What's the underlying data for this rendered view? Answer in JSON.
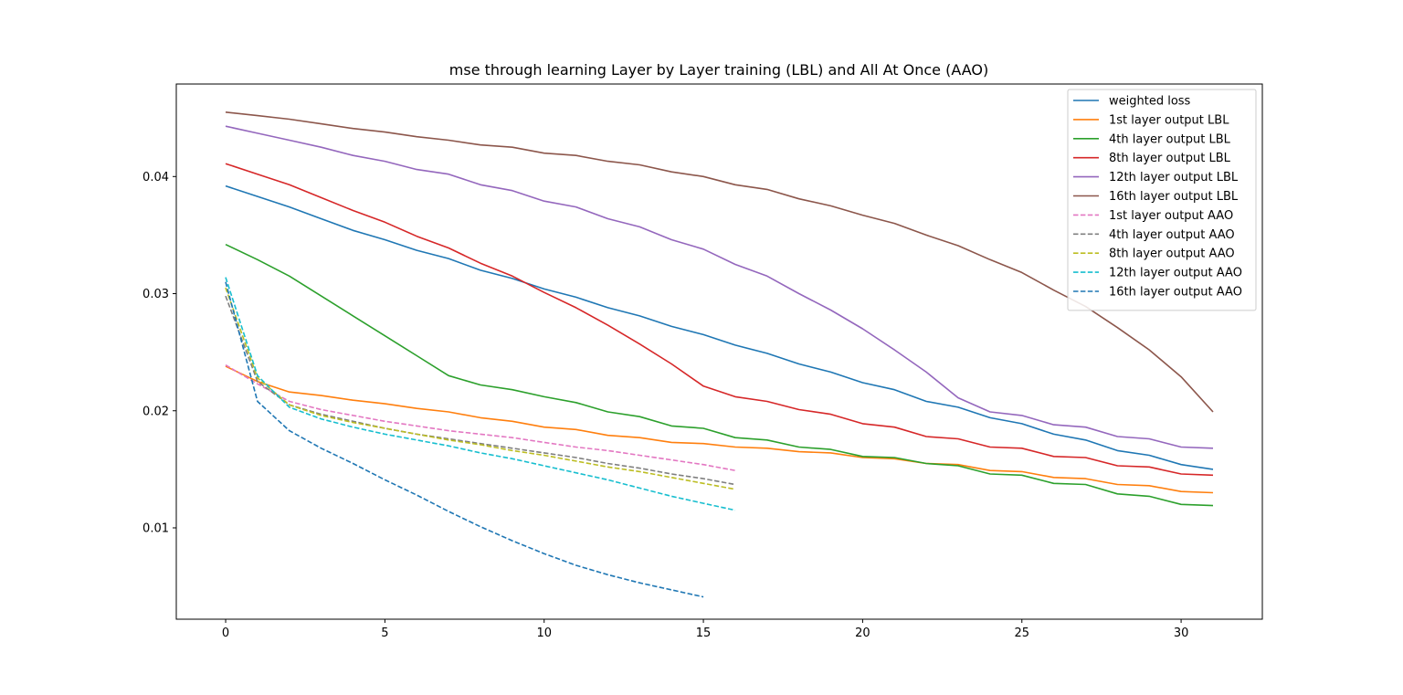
{
  "chart_data": {
    "type": "line",
    "title": "mse through learning Layer by Layer training (LBL) and All At Once (AAO)",
    "xlabel": "",
    "ylabel": "",
    "xlim": [
      -1.55,
      32.55
    ],
    "ylim": [
      0.0022,
      0.0479
    ],
    "x_ticks": [
      0,
      5,
      10,
      15,
      20,
      25,
      30
    ],
    "y_ticks": [
      0.01,
      0.02,
      0.03,
      0.04
    ],
    "y_tick_labels": [
      "0.01",
      "0.02",
      "0.03",
      "0.04"
    ],
    "grid": false,
    "legend": "top-right",
    "series": [
      {
        "name": "weighted loss",
        "color": "#1f77b4",
        "dash": "solid",
        "values": [
          0.0392,
          0.0383,
          0.0374,
          0.0364,
          0.0354,
          0.0346,
          0.0337,
          0.033,
          0.032,
          0.0313,
          0.0304,
          0.0297,
          0.0288,
          0.0281,
          0.0272,
          0.0265,
          0.0256,
          0.0249,
          0.024,
          0.0233,
          0.0224,
          0.0218,
          0.0208,
          0.0203,
          0.0194,
          0.0189,
          0.018,
          0.0175,
          0.0166,
          0.0162,
          0.0154,
          0.015
        ]
      },
      {
        "name": "1st layer output LBL",
        "color": "#ff7f0e",
        "dash": "solid",
        "values": [
          0.0238,
          0.0225,
          0.0216,
          0.0213,
          0.0209,
          0.0206,
          0.0202,
          0.0199,
          0.0194,
          0.0191,
          0.0186,
          0.0184,
          0.0179,
          0.0177,
          0.0173,
          0.0172,
          0.0169,
          0.0168,
          0.0165,
          0.0164,
          0.016,
          0.0159,
          0.0155,
          0.0154,
          0.0149,
          0.0148,
          0.0143,
          0.0142,
          0.0137,
          0.0136,
          0.0131,
          0.013
        ]
      },
      {
        "name": "4th layer output LBL",
        "color": "#2ca02c",
        "dash": "solid",
        "values": [
          0.0342,
          0.0329,
          0.0315,
          0.0298,
          0.0281,
          0.0264,
          0.0247,
          0.023,
          0.0222,
          0.0218,
          0.0212,
          0.0207,
          0.0199,
          0.0195,
          0.0187,
          0.0185,
          0.0177,
          0.0175,
          0.0169,
          0.0167,
          0.0161,
          0.016,
          0.0155,
          0.0153,
          0.0146,
          0.0145,
          0.0138,
          0.0137,
          0.0129,
          0.0127,
          0.012,
          0.0119
        ]
      },
      {
        "name": "8th layer output LBL",
        "color": "#d62728",
        "dash": "solid",
        "values": [
          0.0411,
          0.0402,
          0.0393,
          0.0382,
          0.0371,
          0.0361,
          0.0349,
          0.0339,
          0.0326,
          0.0315,
          0.0301,
          0.0288,
          0.0273,
          0.0257,
          0.024,
          0.0221,
          0.0212,
          0.0208,
          0.0201,
          0.0197,
          0.0189,
          0.0186,
          0.0178,
          0.0176,
          0.0169,
          0.0168,
          0.0161,
          0.016,
          0.0153,
          0.0152,
          0.0146,
          0.0145
        ]
      },
      {
        "name": "12th layer output LBL",
        "color": "#9467bd",
        "dash": "solid",
        "values": [
          0.0443,
          0.0437,
          0.0431,
          0.0425,
          0.0418,
          0.0413,
          0.0406,
          0.0402,
          0.0393,
          0.0388,
          0.0379,
          0.0374,
          0.0364,
          0.0357,
          0.0346,
          0.0338,
          0.0325,
          0.0315,
          0.03,
          0.0286,
          0.027,
          0.0252,
          0.0233,
          0.0211,
          0.0199,
          0.0196,
          0.0188,
          0.0186,
          0.0178,
          0.0176,
          0.0169,
          0.0168
        ]
      },
      {
        "name": "16th layer output LBL",
        "color": "#8c564b",
        "dash": "solid",
        "values": [
          0.0455,
          0.0452,
          0.0449,
          0.0445,
          0.0441,
          0.0438,
          0.0434,
          0.0431,
          0.0427,
          0.0425,
          0.042,
          0.0418,
          0.0413,
          0.041,
          0.0404,
          0.04,
          0.0393,
          0.0389,
          0.0381,
          0.0375,
          0.0367,
          0.036,
          0.035,
          0.0341,
          0.0329,
          0.0318,
          0.0303,
          0.0289,
          0.0271,
          0.0252,
          0.0229,
          0.0199
        ]
      },
      {
        "name": "1st layer output AAO",
        "color": "#e377c2",
        "dash": "dashed",
        "values": [
          0.0239,
          0.0223,
          0.0208,
          0.0201,
          0.0196,
          0.0191,
          0.0187,
          0.0183,
          0.018,
          0.0177,
          0.0173,
          0.0169,
          0.0166,
          0.0162,
          0.0158,
          0.0154,
          0.0149
        ]
      },
      {
        "name": "4th layer output AAO",
        "color": "#7f7f7f",
        "dash": "dashed",
        "values": [
          0.0298,
          0.0225,
          0.0205,
          0.0197,
          0.0191,
          0.0185,
          0.018,
          0.0176,
          0.0172,
          0.0168,
          0.0164,
          0.016,
          0.0155,
          0.0151,
          0.0146,
          0.0142,
          0.0137
        ]
      },
      {
        "name": "8th layer output AAO",
        "color": "#bcbd22",
        "dash": "dashed",
        "values": [
          0.0305,
          0.0228,
          0.0205,
          0.0196,
          0.019,
          0.0185,
          0.018,
          0.0175,
          0.0171,
          0.0166,
          0.0162,
          0.0157,
          0.0152,
          0.0148,
          0.0143,
          0.0138,
          0.0133
        ]
      },
      {
        "name": "12th layer output AAO",
        "color": "#17becf",
        "dash": "dashed",
        "values": [
          0.0314,
          0.023,
          0.0203,
          0.0193,
          0.0186,
          0.018,
          0.0175,
          0.017,
          0.0164,
          0.0159,
          0.0153,
          0.0147,
          0.0141,
          0.0134,
          0.0127,
          0.0121,
          0.0115
        ]
      },
      {
        "name": "16th layer output AAO",
        "color": "#1f77b4",
        "dash": "dashed",
        "values": [
          0.031,
          0.0208,
          0.0183,
          0.0168,
          0.0155,
          0.0141,
          0.0128,
          0.0114,
          0.0101,
          0.0089,
          0.0078,
          0.0068,
          0.006,
          0.0053,
          0.0047,
          0.0041
        ]
      }
    ]
  }
}
